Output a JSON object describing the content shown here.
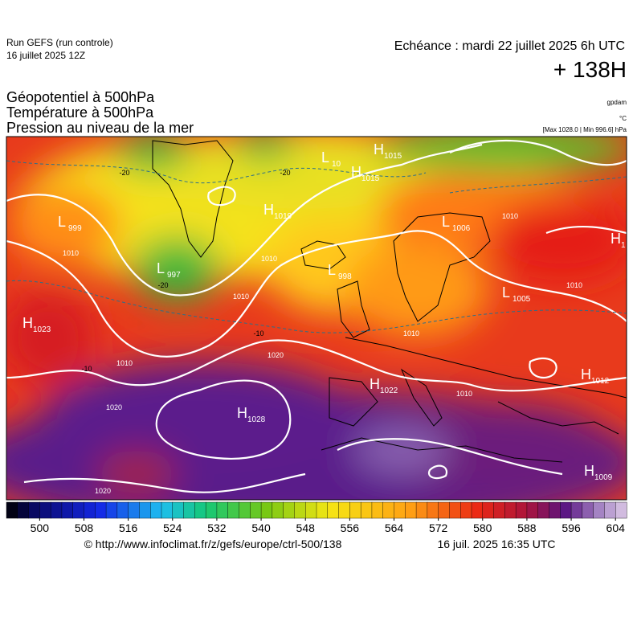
{
  "header": {
    "run": "Run GEFS (run controle)",
    "run_date": "16 juillet 2025 12Z",
    "valid": "Echéance : mardi 22 juillet 2025 6h UTC",
    "lead": "+ 138H",
    "titles": [
      "Géopotentiel à 500hPa",
      "Température à 500hPa",
      "Pression au niveau de la mer"
    ],
    "units": [
      "gpdam",
      "°C",
      "[Max 1028.0 | Min 996.6] hPa"
    ]
  },
  "pressure_centers": [
    {
      "letter": "H",
      "value": "1015"
    },
    {
      "letter": "L",
      "value": "10"
    },
    {
      "letter": "H",
      "value": "1015"
    },
    {
      "letter": "H",
      "value": "1019"
    },
    {
      "letter": "L",
      "value": "999"
    },
    {
      "letter": "L",
      "value": "997"
    },
    {
      "letter": "L",
      "value": "998"
    },
    {
      "letter": "L",
      "value": "1006"
    },
    {
      "letter": "L",
      "value": "1005"
    },
    {
      "letter": "H",
      "value": "1023"
    },
    {
      "letter": "H",
      "value": "1022"
    },
    {
      "letter": "H",
      "value": "1028"
    },
    {
      "letter": "H",
      "value": "1012"
    },
    {
      "letter": "H",
      "value": "1009"
    },
    {
      "letter": "H",
      "value": "1"
    }
  ],
  "isobar_labels": [
    "1010",
    "1010",
    "1010",
    "1010",
    "1010",
    "1010",
    "1020",
    "1020",
    "1020",
    "1010",
    "1010"
  ],
  "temperature_labels": [
    "-20",
    "-20",
    "-20",
    "-10",
    "-10"
  ],
  "colorbar": {
    "lim": [
      494,
      606
    ],
    "ticks": [
      500,
      508,
      516,
      524,
      532,
      540,
      548,
      556,
      564,
      572,
      580,
      588,
      596,
      604
    ]
  },
  "footer": {
    "source": "© http://www.infoclimat.fr/z/gefs/europe/ctrl-500/138",
    "generated": "16 juil. 2025 16:35 UTC"
  }
}
